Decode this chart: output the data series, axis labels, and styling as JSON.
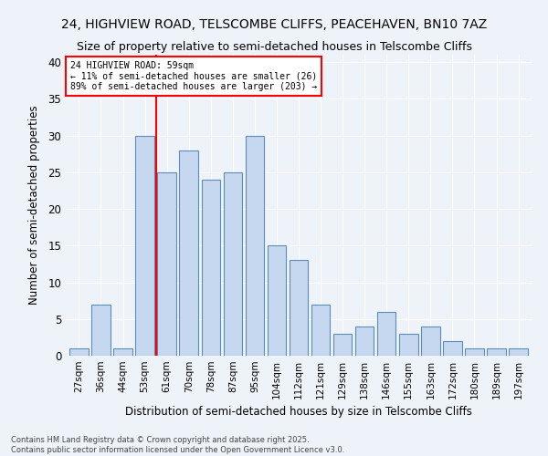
{
  "title": "24, HIGHVIEW ROAD, TELSCOMBE CLIFFS, PEACEHAVEN, BN10 7AZ",
  "subtitle": "Size of property relative to semi-detached houses in Telscombe Cliffs",
  "xlabel": "Distribution of semi-detached houses by size in Telscombe Cliffs",
  "ylabel": "Number of semi-detached properties",
  "categories": [
    "27sqm",
    "36sqm",
    "44sqm",
    "53sqm",
    "61sqm",
    "70sqm",
    "78sqm",
    "87sqm",
    "95sqm",
    "104sqm",
    "112sqm",
    "121sqm",
    "129sqm",
    "138sqm",
    "146sqm",
    "155sqm",
    "163sqm",
    "172sqm",
    "180sqm",
    "189sqm",
    "197sqm"
  ],
  "values": [
    1,
    7,
    1,
    30,
    25,
    28,
    24,
    25,
    30,
    15,
    13,
    7,
    3,
    4,
    6,
    3,
    4,
    2,
    1,
    1,
    1
  ],
  "bar_color": "#c5d8f0",
  "bar_edge_color": "#5b8db8",
  "vline_color": "red",
  "annotation_title": "24 HIGHVIEW ROAD: 59sqm",
  "annotation_line1": "← 11% of semi-detached houses are smaller (26)",
  "annotation_line2": "89% of semi-detached houses are larger (203) →",
  "annotation_box_color": "red",
  "ylim": [
    0,
    41
  ],
  "yticks": [
    0,
    5,
    10,
    15,
    20,
    25,
    30,
    35,
    40
  ],
  "footnote1": "Contains HM Land Registry data © Crown copyright and database right 2025.",
  "footnote2": "Contains public sector information licensed under the Open Government Licence v3.0.",
  "bg_color": "#eef3f9",
  "plot_bg_color": "#eef3f9",
  "grid_color": "#ffffff",
  "title_fontsize": 10,
  "subtitle_fontsize": 9
}
